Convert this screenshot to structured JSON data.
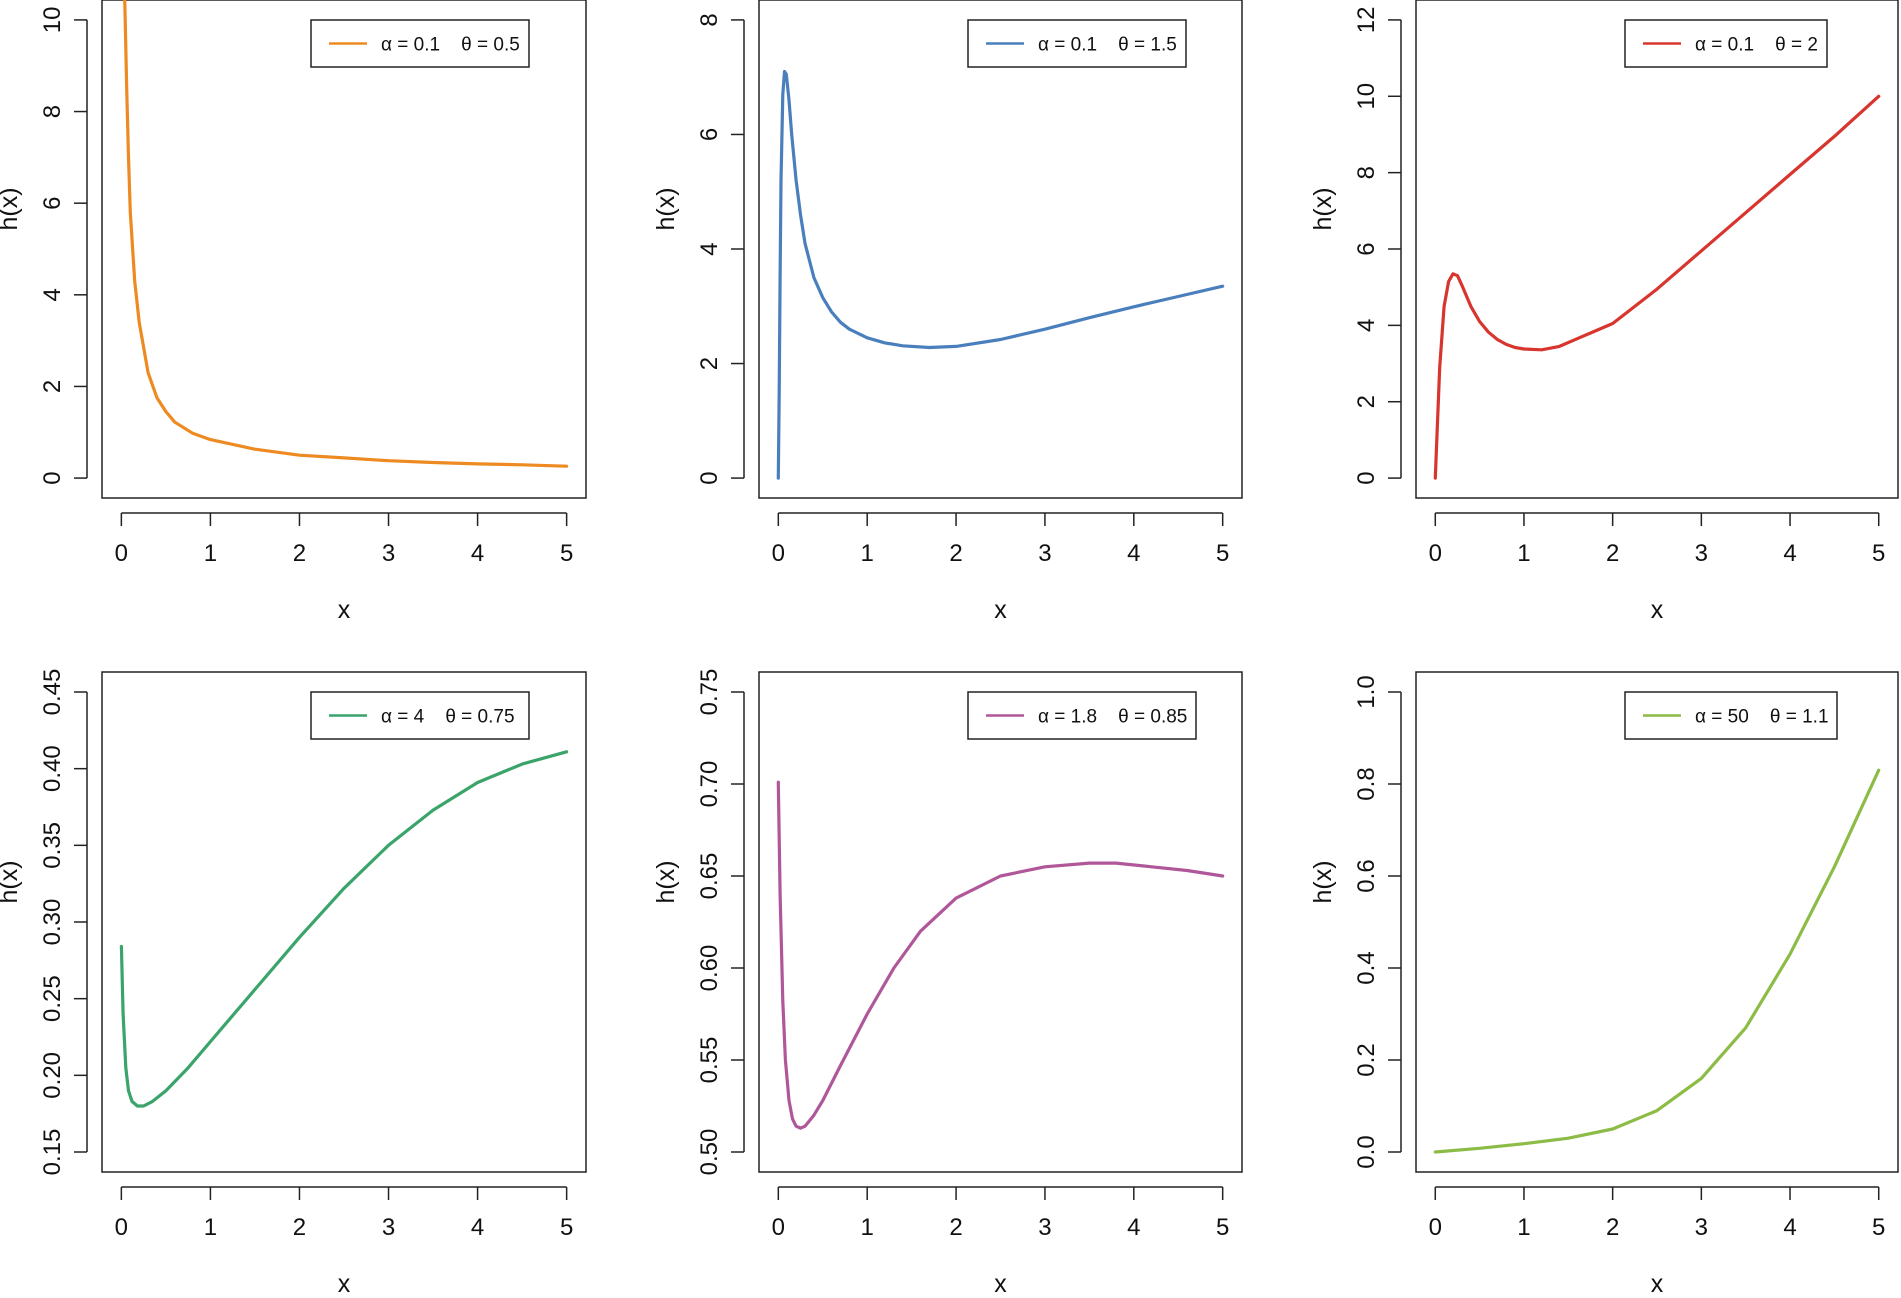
{
  "chart_data": [
    {
      "type": "line",
      "xlabel": "x",
      "ylabel": "h(x)",
      "xlim": [
        0,
        5
      ],
      "ylim": [
        0,
        10
      ],
      "xticks": [
        "0",
        "1",
        "2",
        "3",
        "4",
        "5"
      ],
      "yticks": [
        "0",
        "2",
        "4",
        "6",
        "8",
        "10"
      ],
      "legend_placement": "top-right",
      "series": [
        {
          "name": "α = 0.1    θ = 0.5",
          "color": "#ee8a22",
          "x": [
            0.02,
            0.04,
            0.06,
            0.08,
            0.1,
            0.15,
            0.2,
            0.3,
            0.4,
            0.5,
            0.6,
            0.8,
            1.0,
            1.5,
            2.0,
            2.5,
            3.0,
            3.5,
            4.0,
            4.5,
            5.0
          ],
          "y": [
            11.5,
            10.3,
            8.5,
            7.0,
            5.8,
            4.3,
            3.4,
            2.3,
            1.75,
            1.45,
            1.22,
            0.98,
            0.84,
            0.63,
            0.5,
            0.44,
            0.38,
            0.34,
            0.31,
            0.29,
            0.26
          ]
        }
      ]
    },
    {
      "type": "line",
      "xlabel": "x",
      "ylabel": "h(x)",
      "xlim": [
        0,
        5
      ],
      "ylim": [
        0,
        8
      ],
      "xticks": [
        "0",
        "1",
        "2",
        "3",
        "4",
        "5"
      ],
      "yticks": [
        "0",
        "2",
        "4",
        "6",
        "8"
      ],
      "legend_placement": "top-right",
      "series": [
        {
          "name": "α = 0.1    θ = 1.5",
          "color": "#4a7fbd",
          "x": [
            0.0,
            0.01,
            0.02,
            0.03,
            0.05,
            0.07,
            0.09,
            0.12,
            0.15,
            0.2,
            0.25,
            0.3,
            0.4,
            0.5,
            0.6,
            0.7,
            0.8,
            1.0,
            1.2,
            1.4,
            1.7,
            2.0,
            2.5,
            3.0,
            3.5,
            4.0,
            4.5,
            5.0
          ],
          "y": [
            0.0,
            1.5,
            3.5,
            5.2,
            6.7,
            7.1,
            7.05,
            6.6,
            6.0,
            5.2,
            4.6,
            4.1,
            3.5,
            3.15,
            2.9,
            2.72,
            2.6,
            2.45,
            2.36,
            2.31,
            2.28,
            2.3,
            2.42,
            2.6,
            2.8,
            2.99,
            3.17,
            3.35
          ]
        }
      ]
    },
    {
      "type": "line",
      "xlabel": "x",
      "ylabel": "h(x)",
      "xlim": [
        0,
        5
      ],
      "ylim": [
        0,
        12
      ],
      "xticks": [
        "0",
        "1",
        "2",
        "3",
        "4",
        "5"
      ],
      "yticks": [
        "0",
        "2",
        "4",
        "6",
        "8",
        "10",
        "12"
      ],
      "legend_placement": "top-right",
      "series": [
        {
          "name": "α = 0.1    θ = 2",
          "color": "#d8352e",
          "x": [
            0.0,
            0.02,
            0.05,
            0.1,
            0.15,
            0.2,
            0.25,
            0.3,
            0.4,
            0.5,
            0.6,
            0.7,
            0.8,
            0.9,
            1.0,
            1.2,
            1.4,
            1.6,
            1.8,
            2.0,
            2.5,
            3.0,
            3.5,
            4.0,
            4.5,
            5.0
          ],
          "y": [
            0.0,
            1.2,
            2.9,
            4.5,
            5.15,
            5.35,
            5.3,
            5.05,
            4.5,
            4.1,
            3.82,
            3.63,
            3.5,
            3.42,
            3.38,
            3.36,
            3.45,
            3.65,
            3.85,
            4.05,
            4.95,
            5.95,
            6.95,
            7.95,
            8.95,
            10.0
          ]
        }
      ]
    },
    {
      "type": "line",
      "xlabel": "x",
      "ylabel": "h(x)",
      "xlim": [
        0,
        5
      ],
      "ylim": [
        0.15,
        0.45
      ],
      "xticks": [
        "0",
        "1",
        "2",
        "3",
        "4",
        "5"
      ],
      "yticks": [
        "0.15",
        "0.20",
        "0.25",
        "0.30",
        "0.35",
        "0.40",
        "0.45"
      ],
      "legend_placement": "top-right",
      "series": [
        {
          "name": "α = 4    θ = 0.75",
          "color": "#3aa46a",
          "x": [
            0.0,
            0.02,
            0.05,
            0.08,
            0.12,
            0.18,
            0.25,
            0.35,
            0.5,
            0.75,
            1.0,
            1.5,
            2.0,
            2.5,
            3.0,
            3.5,
            4.0,
            4.5,
            5.0
          ],
          "y": [
            0.284,
            0.24,
            0.205,
            0.19,
            0.183,
            0.18,
            0.18,
            0.183,
            0.19,
            0.205,
            0.222,
            0.256,
            0.29,
            0.322,
            0.35,
            0.373,
            0.391,
            0.403,
            0.411
          ]
        }
      ]
    },
    {
      "type": "line",
      "xlabel": "x",
      "ylabel": "h(x)",
      "xlim": [
        0,
        5
      ],
      "ylim": [
        0.5,
        0.75
      ],
      "xticks": [
        "0",
        "1",
        "2",
        "3",
        "4",
        "5"
      ],
      "yticks": [
        "0.50",
        "0.55",
        "0.60",
        "0.65",
        "0.70",
        "0.75"
      ],
      "legend_placement": "top-right",
      "series": [
        {
          "name": "α = 1.8    θ = 0.85",
          "color": "#b0579a",
          "x": [
            0.0,
            0.02,
            0.05,
            0.08,
            0.12,
            0.16,
            0.2,
            0.25,
            0.3,
            0.4,
            0.5,
            0.7,
            1.0,
            1.3,
            1.6,
            2.0,
            2.5,
            3.0,
            3.5,
            3.8,
            4.2,
            4.6,
            5.0
          ],
          "y": [
            0.701,
            0.64,
            0.582,
            0.55,
            0.528,
            0.518,
            0.514,
            0.513,
            0.514,
            0.52,
            0.528,
            0.547,
            0.575,
            0.6,
            0.62,
            0.638,
            0.65,
            0.655,
            0.657,
            0.657,
            0.655,
            0.653,
            0.65
          ]
        }
      ]
    },
    {
      "type": "line",
      "xlabel": "x",
      "ylabel": "h(x)",
      "xlim": [
        0,
        5
      ],
      "ylim": [
        0,
        1
      ],
      "xticks": [
        "0",
        "1",
        "2",
        "3",
        "4",
        "5"
      ],
      "yticks": [
        "0.0",
        "0.2",
        "0.4",
        "0.6",
        "0.8",
        "1.0"
      ],
      "legend_placement": "top-right",
      "series": [
        {
          "name": "α = 50    θ = 1.1",
          "color": "#8cbc46",
          "x": [
            0.0,
            0.5,
            1.0,
            1.5,
            2.0,
            2.5,
            3.0,
            3.5,
            4.0,
            4.5,
            5.0
          ],
          "y": [
            0.0,
            0.008,
            0.018,
            0.03,
            0.05,
            0.09,
            0.16,
            0.27,
            0.43,
            0.62,
            0.83
          ]
        }
      ]
    }
  ]
}
